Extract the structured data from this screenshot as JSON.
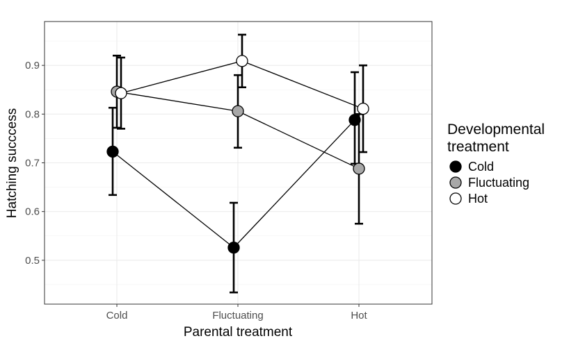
{
  "chart_data": {
    "type": "scatter",
    "title": "",
    "xlabel": "Parental treatment",
    "ylabel": "Hatching succcess",
    "categories": [
      "Cold",
      "Fluctuating",
      "Hot"
    ],
    "ylim": [
      0.41,
      0.99
    ],
    "yticks": [
      0.5,
      0.6,
      0.7,
      0.8,
      0.9
    ],
    "ytick_labels": [
      "0.5",
      "0.6",
      "0.7",
      "0.8",
      "0.9"
    ],
    "grid": true,
    "legend": {
      "title_lines": [
        "Developmental",
        "treatment"
      ],
      "placement": "right"
    },
    "series": [
      {
        "name": "Cold",
        "color": "#000000",
        "values": [
          0.723,
          0.526,
          0.788
        ],
        "lower": [
          0.634,
          0.434,
          0.698
        ],
        "upper": [
          0.813,
          0.618,
          0.886
        ]
      },
      {
        "name": "Fluctuating",
        "color": "#a8a8a8",
        "values": [
          0.846,
          0.806,
          0.688
        ],
        "lower": [
          0.772,
          0.731,
          0.575
        ],
        "upper": [
          0.92,
          0.88,
          0.8
        ]
      },
      {
        "name": "Hot",
        "color": "#ffffff",
        "values": [
          0.843,
          0.909,
          0.811
        ],
        "lower": [
          0.77,
          0.855,
          0.722
        ],
        "upper": [
          0.916,
          0.963,
          0.9
        ]
      }
    ]
  }
}
